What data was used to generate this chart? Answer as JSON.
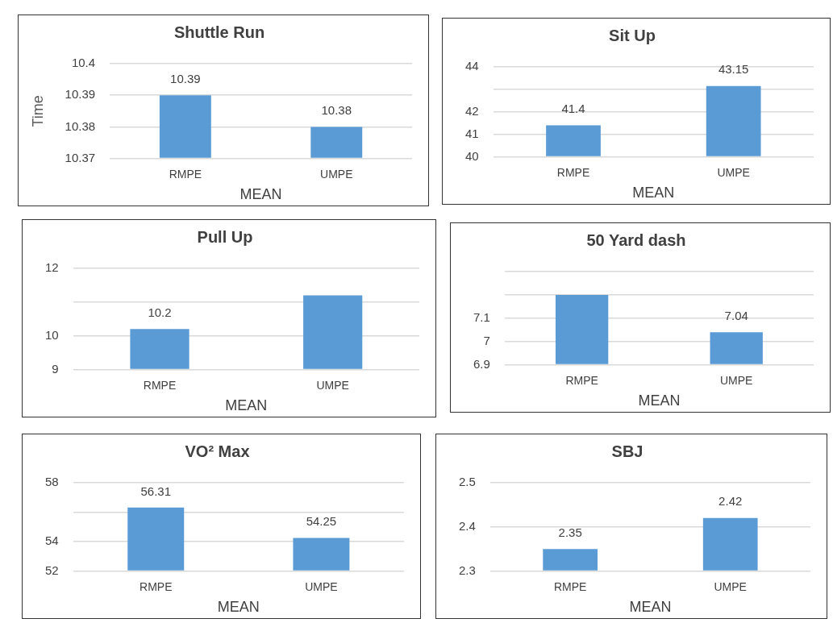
{
  "chart_data": [
    {
      "type": "bar",
      "title": "Shuttle Run",
      "xlabel": "MEAN",
      "ylabel": "Time",
      "categories": [
        "RMPE",
        "UMPE"
      ],
      "values": [
        10.39,
        10.38
      ],
      "value_labels": [
        "10.39",
        "10.38"
      ],
      "color": "#5b9bd5",
      "ylim": [
        10.37,
        10.4
      ],
      "yticks": [
        10.37,
        10.38,
        10.39,
        10.4
      ],
      "grid": "y",
      "legend": false
    },
    {
      "type": "bar",
      "title": "Sit Up",
      "xlabel": "MEAN",
      "categories": [
        "RMPE",
        "UMPE"
      ],
      "values": [
        41.4,
        43.15
      ],
      "value_labels": [
        "41.4",
        "43.15"
      ],
      "color": "#5b9bd5",
      "ylim": [
        40,
        44
      ],
      "yticks": [
        40,
        41,
        42,
        {
          "value": 43,
          "label": null
        },
        44
      ],
      "grid": "y",
      "legend": false
    },
    {
      "type": "bar",
      "title": "Pull Up",
      "xlabel": "MEAN",
      "categories": [
        "RMPE",
        "UMPE"
      ],
      "values": [
        10.2,
        11.2
      ],
      "value_labels": [
        "10.2",
        null
      ],
      "color": "#5b9bd5",
      "ylim": [
        9,
        12
      ],
      "yticks": [
        9,
        10,
        {
          "value": 11,
          "label": null
        },
        12
      ],
      "grid": "y",
      "legend": false
    },
    {
      "type": "bar",
      "title": "50 Yard dash",
      "xlabel": "MEAN",
      "categories": [
        "RMPE",
        "UMPE"
      ],
      "values": [
        7.2,
        7.04
      ],
      "value_labels": [
        null,
        "7.04"
      ],
      "color": "#5b9bd5",
      "ylim": [
        6.9,
        7.3
      ],
      "yticks": [
        6.9,
        7,
        7.1,
        {
          "value": 7.2,
          "label": null
        },
        {
          "value": 7.3,
          "label": null
        }
      ],
      "grid": "y",
      "legend": false
    },
    {
      "type": "bar",
      "title": "VO² Max",
      "xlabel": "MEAN",
      "categories": [
        "RMPE",
        "UMPE"
      ],
      "values": [
        56.31,
        54.25
      ],
      "value_labels": [
        "56.31",
        "54.25"
      ],
      "color": "#5b9bd5",
      "ylim": [
        52,
        58
      ],
      "yticks": [
        52,
        54,
        {
          "value": 56,
          "label": null
        },
        58
      ],
      "grid": "y",
      "legend": false
    },
    {
      "type": "bar",
      "title": "SBJ",
      "xlabel": "MEAN",
      "categories": [
        "RMPE",
        "UMPE"
      ],
      "values": [
        2.35,
        2.42
      ],
      "value_labels": [
        "2.35",
        "2.42"
      ],
      "color": "#5b9bd5",
      "ylim": [
        2.3,
        2.5
      ],
      "yticks": [
        2.3,
        2.4,
        2.5
      ],
      "grid": "y",
      "legend": false
    }
  ]
}
